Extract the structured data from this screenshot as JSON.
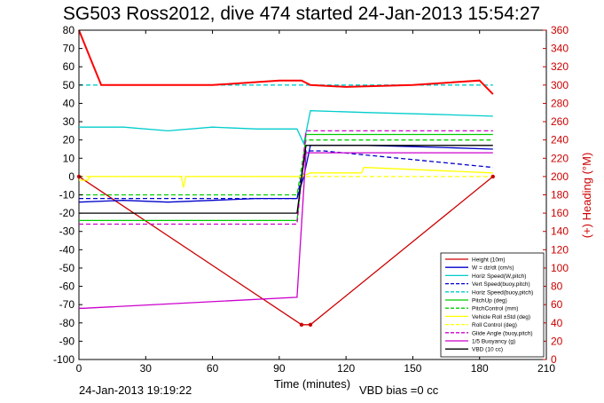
{
  "chart_data": {
    "type": "line",
    "title": "SG503 Ross2012, dive 474 started 24-Jan-2013 15:54:27",
    "xlabel": "Time (minutes)",
    "ylabel_right": "(+) Heading (°M)",
    "footer_left": "24-Jan-2013 19:19:22",
    "footer_right": "VBD bias =0 cc",
    "xlim": [
      0,
      210
    ],
    "ylim": [
      -100,
      80
    ],
    "ylim_right": [
      0,
      360
    ],
    "x_ticks": [
      0,
      30,
      60,
      90,
      120,
      150,
      180,
      210
    ],
    "y_ticks": [
      80,
      70,
      60,
      50,
      40,
      30,
      20,
      10,
      0,
      -10,
      -20,
      -30,
      -40,
      -50,
      -60,
      -70,
      -80,
      -90,
      -100
    ],
    "y_ticks_right": [
      360,
      340,
      320,
      300,
      280,
      260,
      240,
      220,
      200,
      180,
      160,
      140,
      120,
      100,
      80,
      60,
      40,
      20,
      0
    ],
    "grid": false,
    "legend_position": "bottom-right",
    "colors": {
      "height": "#cc0000",
      "w": "#0000cc",
      "horiz_speed": "#00cccc",
      "vert_speed_buoy": "#0000cc",
      "horiz_speed_buoy": "#00cccc",
      "pitch_up": "#00cc00",
      "pitch_control": "#00cc00",
      "roll": "#ffff00",
      "roll_control": "#ffff00",
      "glide_angle": "#cc00cc",
      "buoyancy": "#cc00cc",
      "vbd": "#000000",
      "heading": "#ff0000"
    },
    "series": [
      {
        "name": "Height (10m)",
        "key": "height",
        "dash": "solid",
        "marker": "dot",
        "x": [
          0,
          100,
          104,
          186
        ],
        "y": [
          0,
          -81,
          -81,
          0
        ]
      },
      {
        "name": "W = dz/dt (cm/s)",
        "key": "w",
        "dash": "solid",
        "x": [
          0,
          20,
          40,
          60,
          80,
          98,
          101,
          104,
          130,
          160,
          186
        ],
        "y": [
          -14,
          -13,
          -14,
          -13,
          -12,
          -12,
          0,
          17,
          17,
          16,
          15
        ]
      },
      {
        "name": "Horiz Speed(W,pitch)",
        "key": "horiz_speed",
        "dash": "solid",
        "x": [
          0,
          20,
          40,
          60,
          80,
          98,
          101,
          104,
          130,
          160,
          186
        ],
        "y": [
          27,
          27,
          25,
          27,
          26,
          26,
          18,
          36,
          35,
          34,
          33
        ]
      },
      {
        "name": "Vert Speed(buoy,pitch)",
        "key": "vert_speed_buoy",
        "dash": "dashed",
        "x": [
          0,
          98,
          102,
          110,
          186
        ],
        "y": [
          -12,
          -12,
          14,
          14,
          5
        ]
      },
      {
        "name": "Horiz Speed(buoy,pitch)",
        "key": "horiz_speed_buoy",
        "dash": "dashed",
        "x": [
          0,
          186
        ],
        "y": [
          50,
          50
        ]
      },
      {
        "name": "PitchUp (deg)",
        "key": "pitch_up",
        "dash": "solid",
        "x": [
          0,
          98,
          102,
          186
        ],
        "y": [
          -24,
          -24,
          23,
          23
        ]
      },
      {
        "name": "PitchControl (mm)",
        "key": "pitch_control",
        "dash": "dashed",
        "x": [
          0,
          98,
          102,
          186
        ],
        "y": [
          -10,
          -10,
          20,
          20
        ]
      },
      {
        "name": "Vehicle Roll ±Std (deg)",
        "key": "roll",
        "dash": "solid",
        "x": [
          0,
          4,
          5,
          46,
          47,
          48,
          100,
          104,
          127,
          128,
          186
        ],
        "y": [
          -2,
          -2,
          0,
          0,
          -6,
          0,
          0,
          2,
          2,
          5,
          2
        ]
      },
      {
        "name": "Roll Control (deg)",
        "key": "roll_control",
        "dash": "dashed",
        "x": [
          0,
          186
        ],
        "y": [
          0,
          0
        ]
      },
      {
        "name": "Glide Angle (buoy,pitch)",
        "key": "glide_angle",
        "dash": "dashed",
        "x": [
          0,
          98,
          102,
          186
        ],
        "y": [
          -26,
          -26,
          25,
          25
        ]
      },
      {
        "name": "1/5 Buoyancy (g)",
        "key": "buoyancy",
        "dash": "solid",
        "x": [
          0,
          2,
          98,
          102,
          186
        ],
        "y": [
          -72,
          -72,
          -66,
          13,
          13
        ]
      },
      {
        "name": "VBD (10 cc)",
        "key": "vbd",
        "dash": "solid",
        "x": [
          0,
          98,
          102,
          186
        ],
        "y": [
          -20,
          -20,
          17,
          17
        ]
      },
      {
        "name": "Heading",
        "key": "heading",
        "dash": "solid",
        "axis": "right",
        "x": [
          0,
          5,
          10,
          30,
          60,
          90,
          100,
          104,
          120,
          150,
          180,
          186
        ],
        "y": [
          360,
          330,
          300,
          300,
          300,
          305,
          305,
          300,
          298,
          300,
          305,
          290
        ]
      }
    ]
  }
}
